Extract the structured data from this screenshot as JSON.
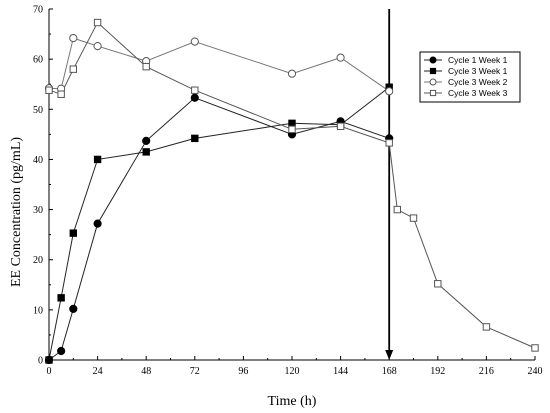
{
  "chart_data": {
    "type": "line",
    "xlabel": "Time (h)",
    "ylabel": "EE Concentration (pg/mL)",
    "xlim": [
      0,
      240
    ],
    "ylim": [
      0,
      70
    ],
    "xticks": [
      0,
      24,
      48,
      72,
      96,
      120,
      144,
      168,
      192,
      216,
      240
    ],
    "yticks": [
      0,
      10,
      20,
      30,
      40,
      50,
      60,
      70
    ],
    "grid": false,
    "legend_position": "top-right",
    "annotation": {
      "type": "vertical-arrow-down",
      "x": 168,
      "y_from": 70,
      "y_to": 0
    },
    "series": [
      {
        "name": "Cycle 1 Week 1",
        "marker": "filled-circle",
        "x": [
          0,
          6,
          12,
          24,
          48,
          72,
          120,
          144,
          168
        ],
        "y": [
          0,
          1.8,
          10.2,
          27.2,
          43.7,
          52.3,
          45.0,
          47.6,
          44.2
        ]
      },
      {
        "name": "Cycle 3 Week 1",
        "marker": "filled-square",
        "x": [
          0,
          6,
          12,
          24,
          48,
          72,
          120,
          144,
          168
        ],
        "y": [
          0,
          12.4,
          25.3,
          40.0,
          41.5,
          44.2,
          47.2,
          46.9,
          54.4
        ]
      },
      {
        "name": "Cycle 3 Week 2",
        "marker": "open-circle",
        "x": [
          0,
          6,
          12,
          24,
          48,
          72,
          120,
          144,
          168
        ],
        "y": [
          54.2,
          54.1,
          64.2,
          62.6,
          59.6,
          63.5,
          57.1,
          60.3,
          53.6
        ]
      },
      {
        "name": "Cycle 3 Week 3",
        "marker": "open-square",
        "x": [
          0,
          6,
          12,
          24,
          48,
          72,
          120,
          144,
          168,
          172,
          180,
          192,
          216,
          240
        ],
        "y": [
          53.8,
          53.0,
          58.0,
          67.3,
          58.5,
          53.8,
          46.0,
          46.6,
          43.3,
          30.0,
          28.3,
          15.2,
          6.6,
          2.4
        ]
      }
    ]
  }
}
